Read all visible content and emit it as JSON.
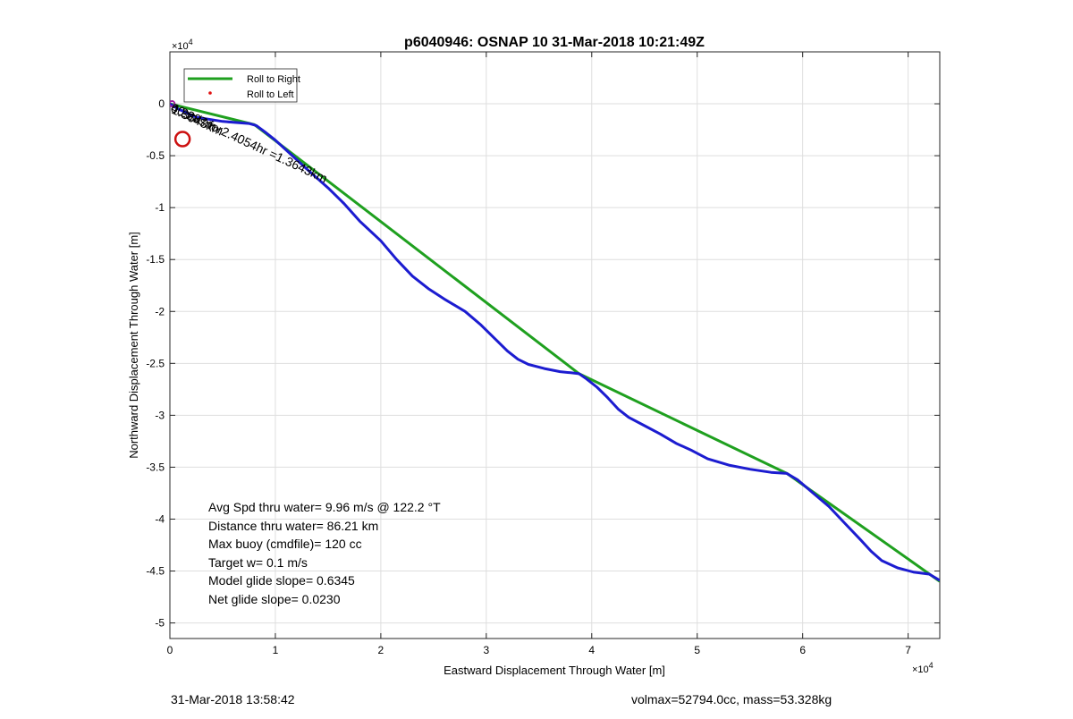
{
  "chart_data": {
    "type": "line",
    "title": "p6040946: OSNAP 10 31-Mar-2018 10:21:49Z",
    "xlabel": "Eastward Displacement Through Water [m]",
    "ylabel": "Northward Displacement Through Water [m]",
    "x_exponent_label": "×10",
    "y_exponent_label": "×10",
    "exponent_power": "4",
    "xlim": [
      0,
      73000
    ],
    "ylim": [
      -51500,
      5000
    ],
    "grid": true,
    "legend_position": "top-left",
    "x_ticks": [
      {
        "value": 0,
        "label": "0"
      },
      {
        "value": 10000,
        "label": "1"
      },
      {
        "value": 20000,
        "label": "2"
      },
      {
        "value": 30000,
        "label": "3"
      },
      {
        "value": 40000,
        "label": "4"
      },
      {
        "value": 50000,
        "label": "5"
      },
      {
        "value": 60000,
        "label": "6"
      },
      {
        "value": 70000,
        "label": "7"
      }
    ],
    "y_ticks": [
      {
        "value": 0,
        "label": "0"
      },
      {
        "value": -5000,
        "label": "-0.5"
      },
      {
        "value": -10000,
        "label": "-1"
      },
      {
        "value": -15000,
        "label": "-1.5"
      },
      {
        "value": -20000,
        "label": "-2"
      },
      {
        "value": -25000,
        "label": "-2.5"
      },
      {
        "value": -30000,
        "label": "-3"
      },
      {
        "value": -35000,
        "label": "-3.5"
      },
      {
        "value": -40000,
        "label": "-4"
      },
      {
        "value": -45000,
        "label": "-4.5"
      },
      {
        "value": -50000,
        "label": "-5"
      }
    ],
    "series": [
      {
        "name": "Roll to Right",
        "color": "#1fa01f",
        "style": "line",
        "points": [
          [
            0,
            0
          ],
          [
            8000,
            -2000
          ],
          [
            38800,
            -26000
          ],
          [
            58500,
            -35600
          ],
          [
            73000,
            -46000
          ]
        ]
      },
      {
        "name": "Roll to Left",
        "color": "#e01010",
        "style": "marker",
        "points": []
      },
      {
        "color": "#1c1cd0",
        "style": "line",
        "points": [
          [
            0,
            0
          ],
          [
            800,
            -500
          ],
          [
            2500,
            -1300
          ],
          [
            5000,
            -1700
          ],
          [
            7500,
            -1900
          ],
          [
            8200,
            -2100
          ],
          [
            9000,
            -2700
          ],
          [
            10000,
            -3500
          ],
          [
            11500,
            -4900
          ],
          [
            13000,
            -6300
          ],
          [
            15000,
            -8100
          ],
          [
            16500,
            -9600
          ],
          [
            18000,
            -11300
          ],
          [
            20000,
            -13200
          ],
          [
            21500,
            -15000
          ],
          [
            23000,
            -16600
          ],
          [
            24500,
            -17800
          ],
          [
            26000,
            -18800
          ],
          [
            28000,
            -20000
          ],
          [
            29500,
            -21300
          ],
          [
            31000,
            -22800
          ],
          [
            32000,
            -23800
          ],
          [
            33000,
            -24600
          ],
          [
            34000,
            -25100
          ],
          [
            35500,
            -25500
          ],
          [
            37000,
            -25800
          ],
          [
            38000,
            -25900
          ],
          [
            38800,
            -26000
          ],
          [
            39500,
            -26500
          ],
          [
            40500,
            -27300
          ],
          [
            41500,
            -28300
          ],
          [
            42500,
            -29400
          ],
          [
            43500,
            -30200
          ],
          [
            45000,
            -31000
          ],
          [
            46500,
            -31800
          ],
          [
            48000,
            -32700
          ],
          [
            49500,
            -33400
          ],
          [
            51000,
            -34200
          ],
          [
            53000,
            -34800
          ],
          [
            55000,
            -35200
          ],
          [
            57000,
            -35500
          ],
          [
            58500,
            -35600
          ],
          [
            59500,
            -36200
          ],
          [
            61000,
            -37500
          ],
          [
            62500,
            -38800
          ],
          [
            64000,
            -40400
          ],
          [
            65500,
            -42000
          ],
          [
            66500,
            -43100
          ],
          [
            67500,
            -44000
          ],
          [
            69000,
            -44700
          ],
          [
            70500,
            -45100
          ],
          [
            72000,
            -45300
          ],
          [
            73000,
            -45900
          ]
        ]
      }
    ],
    "annotations": [
      {
        "text": "Avg Spd thru water=  9.96 m/s @ 122.2 °T"
      },
      {
        "text": "Distance thru water= 86.21 km"
      },
      {
        "text": "Max buoy (cmdfile)= 120 cc"
      },
      {
        "text": "Target w= 0.1 m/s"
      },
      {
        "text": "Model glide slope= 0.6345"
      },
      {
        "text": "Net glide slope= 0.0230"
      }
    ],
    "overlap_labels": [
      {
        "text": "0.2m/s for2.4054hr =1.3643km",
        "rotation": 25
      },
      {
        "text": "40.287m",
        "rotation": 25
      },
      {
        "text": "1.3643km",
        "rotation": 25
      }
    ],
    "markers": [
      {
        "type": "circle",
        "color": "#cc1010",
        "x": 1200,
        "y": -3400
      },
      {
        "type": "circle",
        "color": "#a020a0",
        "x": 200,
        "y": 0
      }
    ]
  },
  "footer": {
    "left": "31-Mar-2018 13:58:42",
    "right": "volmax=52794.0cc, mass=53.328kg"
  }
}
